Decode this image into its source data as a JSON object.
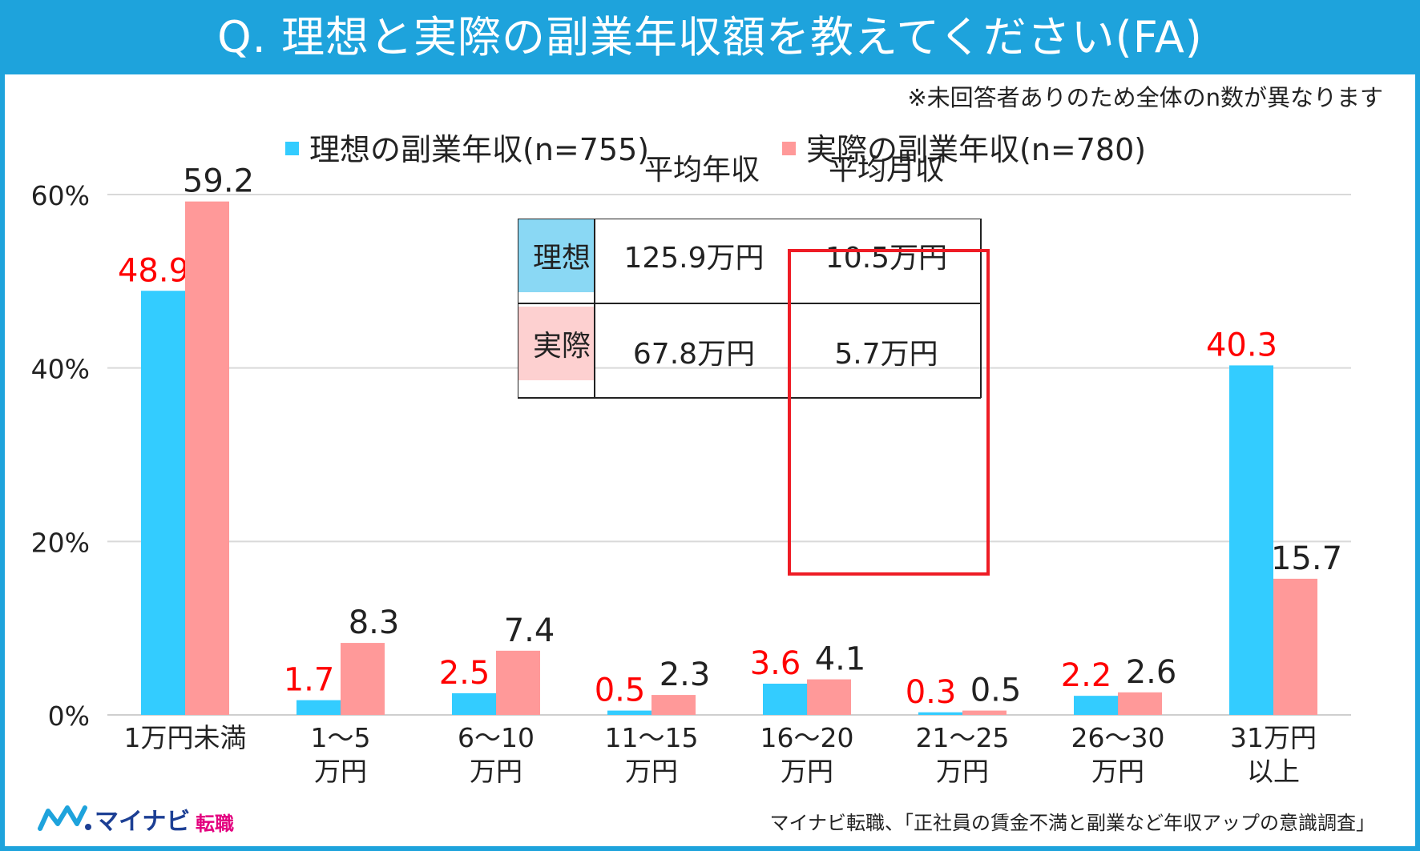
{
  "title": "Q. 理想と実際の副業年収額を教えてください(FA)",
  "note": "※未回答者ありのため全体のn数が異なります",
  "source": "マイナビ転職、「正社員の賃金不満と副業など年収アップの意識調査」",
  "logo": {
    "kana": "マイナビ",
    "tenshoku": "転職"
  },
  "colors": {
    "ideal": "#33ccff",
    "actual": "#ff9999",
    "ideal_label": "#ff0000",
    "actual_label": "#222222",
    "frame": "#1ea3dc",
    "highlight": "#ee1c25"
  },
  "summary": {
    "headers": [
      "平均年収",
      "平均月収"
    ],
    "rows": [
      {
        "label": "理想",
        "annual": "125.9万円",
        "monthly": "10.5万円"
      },
      {
        "label": "実際",
        "annual": "67.8万円",
        "monthly": "5.7万円"
      }
    ]
  },
  "chart_data": {
    "type": "bar",
    "categories": [
      "1万円未満",
      "1〜5\n万円",
      "6〜10\n万円",
      "11〜15\n万円",
      "16〜20\n万円",
      "21〜25\n万円",
      "26〜30\n万円",
      "31万円\n以上"
    ],
    "series": [
      {
        "name": "理想の副業年収(n=755)",
        "values": [
          48.9,
          1.7,
          2.5,
          0.5,
          3.6,
          0.3,
          2.2,
          40.3
        ]
      },
      {
        "name": "実際の副業年収(n=780)",
        "values": [
          59.2,
          8.3,
          7.4,
          2.3,
          4.1,
          0.5,
          2.6,
          15.7
        ]
      }
    ],
    "yticks": [
      "0%",
      "20%",
      "40%",
      "60%"
    ],
    "ylim": [
      0,
      60
    ],
    "grid": true,
    "legend": "top"
  }
}
